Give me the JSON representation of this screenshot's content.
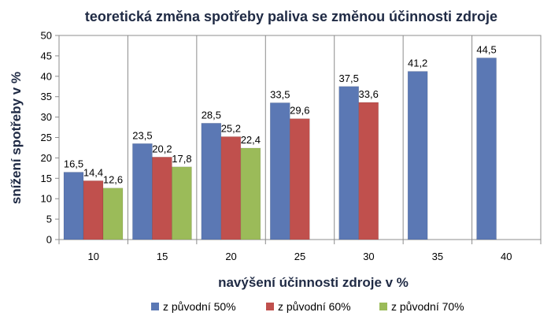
{
  "chart_data": {
    "type": "bar",
    "title": "teoretická změna spotřeby paliva se změnou účinnosti zdroje",
    "xlabel": "navýšení účinnosti zdroje v  %",
    "ylabel": "snížení spotřeby v %",
    "categories": [
      "10",
      "15",
      "20",
      "25",
      "30",
      "35",
      "40"
    ],
    "ylim": [
      0,
      50
    ],
    "yticks": [
      0,
      5,
      10,
      15,
      20,
      25,
      30,
      35,
      40,
      45,
      50
    ],
    "grid": "vertical category separators",
    "legend_position": "bottom",
    "series": [
      {
        "name": "z původní 50%",
        "color": "#5b78b4",
        "values": [
          16.5,
          23.5,
          28.5,
          33.5,
          37.5,
          41.2,
          44.5
        ],
        "labels": [
          "16,5",
          "23,5",
          "28,5",
          "33,5",
          "37,5",
          "41,2",
          "44,5"
        ]
      },
      {
        "name": "z původní 60%",
        "color": "#c0504d",
        "values": [
          14.4,
          20.2,
          25.2,
          29.6,
          33.6,
          null,
          null
        ],
        "labels": [
          "14,4",
          "20,2",
          "25,2",
          "29,6",
          "33,6",
          null,
          null
        ]
      },
      {
        "name": "z původní 70%",
        "color": "#9bbb59",
        "values": [
          12.6,
          17.8,
          22.4,
          null,
          null,
          null,
          null
        ],
        "labels": [
          "12,6",
          "17,8",
          "22,4",
          null,
          null,
          null,
          null
        ]
      }
    ]
  }
}
